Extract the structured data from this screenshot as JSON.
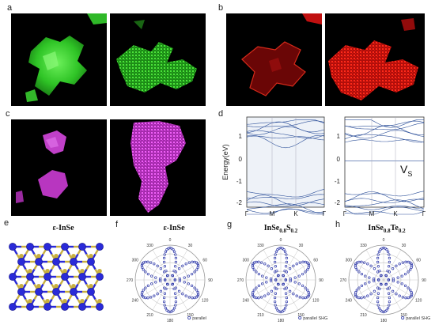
{
  "panels": {
    "a": "a",
    "b": "b",
    "c": "c",
    "d": "d",
    "e": "e",
    "f": "f",
    "g": "g",
    "h": "h"
  },
  "colors": {
    "green": "#3cdc2a",
    "red": "#e01010",
    "magenta": "#d040d8",
    "band": "#2c4f99",
    "crystal_in": "#2a2ad8",
    "crystal_se": "#c8b040",
    "polar_marker": "#2a35a8"
  },
  "band_structure": {
    "ylabel": "Energy(eV)",
    "yticks": [
      "1",
      "0",
      "-1",
      "-2"
    ],
    "kpoints": [
      "Γ",
      "M",
      "K",
      "Γ"
    ],
    "defect_label": "V",
    "defect_sub": "S"
  },
  "structure_title": "ε-InSe",
  "polar": [
    {
      "title_main": "ε-InSe",
      "title_sub": "",
      "title_rest": "",
      "title_sub2": "",
      "legend": "parallel",
      "angles": [
        "0",
        "30",
        "60",
        "90",
        "120",
        "150",
        "180",
        "210",
        "240",
        "270",
        "300",
        "330"
      ]
    },
    {
      "title_main": "InSe",
      "title_sub": "0.8",
      "title_rest": "S",
      "title_sub2": "0.2",
      "legend": "parallel SHG",
      "angles": [
        "0",
        "30",
        "60",
        "90",
        "120",
        "150",
        "180",
        "210",
        "240",
        "270",
        "300",
        "330"
      ]
    },
    {
      "title_main": "InSe",
      "title_sub": "0.8",
      "title_rest": "Te",
      "title_sub2": "0.2",
      "legend": "parallel SHG",
      "angles": [
        "0",
        "30",
        "60",
        "90",
        "120",
        "150",
        "180",
        "210",
        "240",
        "270",
        "300",
        "330"
      ]
    }
  ]
}
